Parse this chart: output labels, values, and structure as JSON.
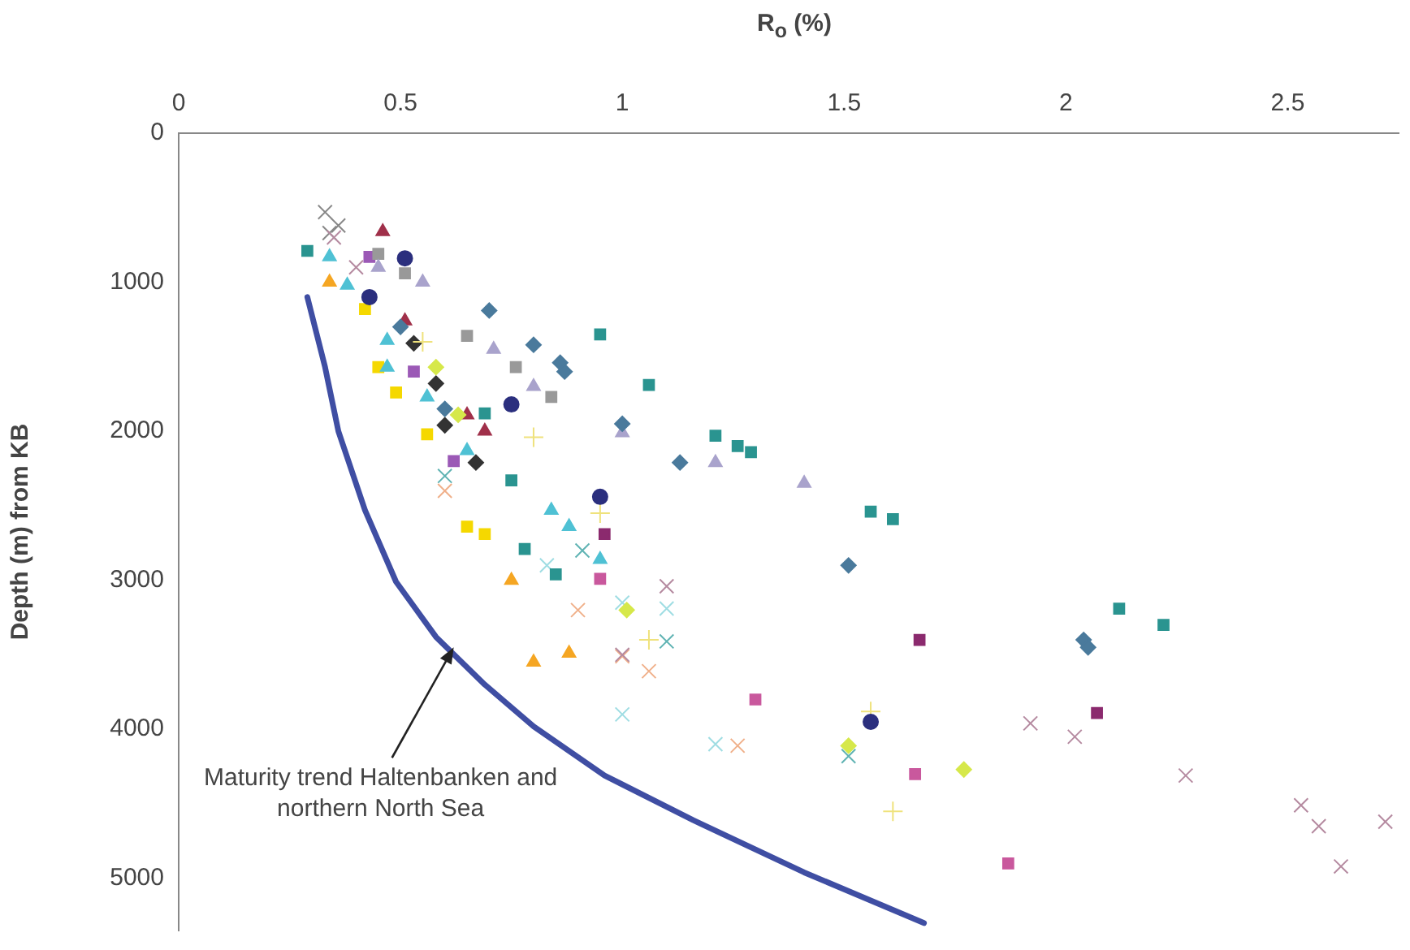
{
  "chart_data": {
    "type": "scatter",
    "xlabel": "R$_{o}$ (%)",
    "ylabel": "Depth (m) from KB",
    "xlim": [
      0,
      2.75
    ],
    "xticks": [
      0,
      0.5,
      1,
      1.5,
      2,
      2.5
    ],
    "ylim": [
      5350,
      0
    ],
    "yticks": [
      0,
      1000,
      2000,
      3000,
      4000,
      5000
    ],
    "grid": false,
    "legend": false,
    "annotations": [
      {
        "text": "Maturity trend Haltenbanken and northern North Sea",
        "x": 0.62,
        "y": 3450
      }
    ],
    "series": [
      {
        "type": "line",
        "color": "#3f4ea3",
        "marker": "none",
        "line_style": "solid",
        "x": [
          0.29,
          0.33,
          0.36,
          0.42,
          0.49,
          0.58,
          0.69,
          0.8,
          0.96,
          1.16,
          1.41,
          1.68
        ],
        "values": [
          1100,
          1570,
          2000,
          2530,
          3010,
          3380,
          3700,
          3980,
          4310,
          4610,
          4960,
          5300
        ]
      },
      {
        "color": "#2a9490",
        "marker": "square",
        "x": [
          0.29,
          0.95,
          1.06,
          1.21,
          1.26,
          1.29,
          1.56,
          1.61,
          2.12,
          2.22,
          0.69,
          0.75,
          0.78,
          0.85
        ],
        "values": [
          790,
          1350,
          1690,
          2030,
          2100,
          2140,
          2540,
          2590,
          3190,
          3300,
          1880,
          2330,
          2790,
          2960
        ]
      },
      {
        "color": "#4a7a9c",
        "marker": "diamond",
        "x": [
          0.7,
          0.8,
          0.86,
          0.87,
          1.0,
          1.13,
          1.51,
          2.04,
          2.05,
          0.5,
          0.6
        ],
        "values": [
          1190,
          1420,
          1540,
          1600,
          1950,
          2210,
          2900,
          3400,
          3450,
          1300,
          1850
        ]
      },
      {
        "color": "#a9a3cc",
        "marker": "triangle",
        "x": [
          0.55,
          0.71,
          0.8,
          1.0,
          1.21,
          1.41,
          0.45
        ],
        "values": [
          1000,
          1450,
          1700,
          2010,
          2210,
          2350,
          900
        ]
      },
      {
        "color": "#999999",
        "marker": "square",
        "x": [
          0.65,
          0.76,
          0.84,
          0.45,
          0.51
        ],
        "values": [
          1360,
          1570,
          1770,
          810,
          940
        ]
      },
      {
        "color": "#2b2f7e",
        "marker": "circle",
        "x": [
          0.51,
          0.75,
          0.95,
          1.56,
          0.43
        ],
        "values": [
          840,
          1820,
          2440,
          3950,
          1100
        ]
      },
      {
        "color": "#4fc1d4",
        "marker": "triangle",
        "x": [
          0.34,
          0.38,
          0.47,
          0.84,
          0.88,
          0.95,
          0.47,
          0.56,
          0.65
        ],
        "values": [
          830,
          1020,
          1390,
          2530,
          2640,
          2860,
          1570,
          1770,
          2130
        ]
      },
      {
        "color": "#f5a623",
        "marker": "triangle",
        "x": [
          0.34,
          0.88,
          0.8,
          0.75
        ],
        "values": [
          1000,
          3490,
          3550,
          3000
        ]
      },
      {
        "color": "#c9589d",
        "marker": "square",
        "x": [
          0.95,
          1.3,
          1.66,
          1.87
        ],
        "values": [
          2990,
          3800,
          4300,
          4900
        ]
      },
      {
        "color": "#9b59b6",
        "marker": "square",
        "x": [
          0.43,
          0.53,
          0.62
        ],
        "values": [
          830,
          1600,
          2200
        ]
      },
      {
        "color": "#d6e84a",
        "marker": "diamond",
        "x": [
          1.01,
          1.51,
          1.77,
          0.58,
          0.63
        ],
        "values": [
          3200,
          4110,
          4270,
          1570,
          1890
        ]
      },
      {
        "color": "#f5d800",
        "marker": "square",
        "x": [
          0.42,
          0.45,
          0.49,
          0.56,
          0.65,
          0.69
        ],
        "values": [
          1180,
          1570,
          1740,
          2020,
          2640,
          2690
        ]
      },
      {
        "color": "#b58aa0",
        "marker": "cross",
        "x": [
          1.92,
          2.02,
          2.27,
          2.53,
          2.57,
          2.62,
          2.72,
          1.1,
          1.0,
          0.35,
          0.4
        ],
        "values": [
          3960,
          4050,
          4310,
          4510,
          4650,
          4920,
          4620,
          3040,
          3500,
          700,
          900
        ]
      },
      {
        "color": "#9fdde3",
        "marker": "cross",
        "x": [
          1.0,
          1.21,
          1.1,
          1.0,
          0.83
        ],
        "values": [
          3900,
          4100,
          3190,
          3150,
          2900
        ]
      },
      {
        "color": "#f0b08a",
        "marker": "cross",
        "x": [
          1.26,
          1.0,
          1.06,
          0.9,
          0.6
        ],
        "values": [
          4110,
          3510,
          3610,
          3200,
          2400
        ]
      },
      {
        "color": "#efe27c",
        "marker": "plus",
        "x": [
          1.61,
          1.06,
          1.56,
          0.95,
          0.55,
          0.8
        ],
        "values": [
          4550,
          3400,
          3880,
          2550,
          1400,
          2040
        ]
      },
      {
        "color": "#5fb3b3",
        "marker": "cross",
        "x": [
          1.1,
          1.51,
          0.91,
          0.6
        ],
        "values": [
          3410,
          4180,
          2800,
          2300
        ]
      },
      {
        "color": "#8b2a6e",
        "marker": "square",
        "x": [
          0.96,
          1.67,
          2.07
        ],
        "values": [
          2690,
          3400,
          3890
        ]
      },
      {
        "color": "#a0304a",
        "marker": "triangle",
        "x": [
          0.46,
          0.51,
          0.65,
          0.69
        ],
        "values": [
          660,
          1260,
          1890,
          2000
        ]
      },
      {
        "color": "#333333",
        "marker": "diamond",
        "x": [
          0.53,
          0.58,
          0.6,
          0.67
        ],
        "values": [
          1410,
          1680,
          1960,
          2210
        ]
      },
      {
        "color": "#888888",
        "marker": "cross",
        "x": [
          0.33,
          0.36,
          0.34
        ],
        "values": [
          530,
          620,
          670
        ]
      }
    ]
  }
}
